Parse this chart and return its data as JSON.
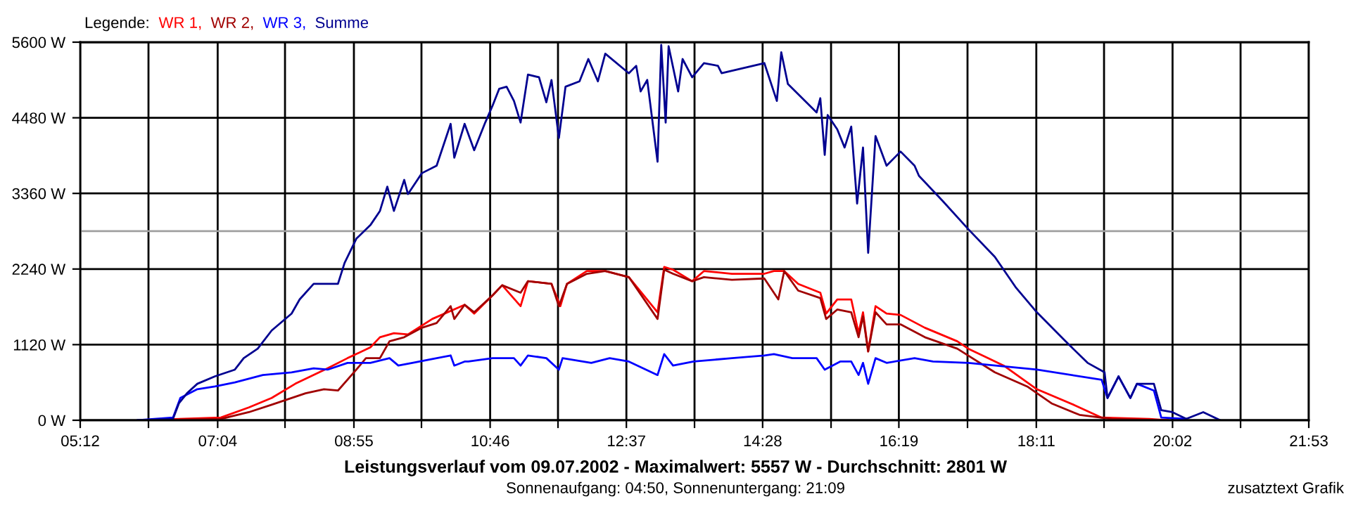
{
  "chart_data": {
    "type": "line",
    "title": "Leistungsverlauf vom 09.07.2002 - Maximalwert: 5557 W - Durchschnitt: 2801 W",
    "subtitle": "Sonnenaufgang: 04:50, Sonnenuntergang: 21:09",
    "legend_title": "Legende:",
    "annotations": [
      "zusatztext Grafik"
    ],
    "xlim": [
      5.2,
      21.8833
    ],
    "xticks": [
      {
        "value": 5.2,
        "label": "05:12"
      },
      {
        "value": 6.127,
        "label": null
      },
      {
        "value": 7.0667,
        "label": "07:04"
      },
      {
        "value": 7.981,
        "label": null
      },
      {
        "value": 8.9167,
        "label": "08:55"
      },
      {
        "value": 9.834,
        "label": null
      },
      {
        "value": 10.7667,
        "label": "10:46"
      },
      {
        "value": 11.688,
        "label": null
      },
      {
        "value": 12.6167,
        "label": "12:37"
      },
      {
        "value": 13.542,
        "label": null
      },
      {
        "value": 14.4667,
        "label": "14:28"
      },
      {
        "value": 15.396,
        "label": null
      },
      {
        "value": 16.3167,
        "label": "16:19"
      },
      {
        "value": 17.249,
        "label": null
      },
      {
        "value": 18.1833,
        "label": "18:11"
      },
      {
        "value": 19.103,
        "label": null
      },
      {
        "value": 20.0333,
        "label": "20:02"
      },
      {
        "value": 20.957,
        "label": null
      },
      {
        "value": 21.8833,
        "label": "21:53"
      }
    ],
    "ylim": [
      0,
      5600
    ],
    "yticks": [
      {
        "value": 0,
        "label": "0 W"
      },
      {
        "value": 1120,
        "label": "1120 W"
      },
      {
        "value": 2240,
        "label": "2240 W"
      },
      {
        "value": 3360,
        "label": "3360 W"
      },
      {
        "value": 4480,
        "label": "4480 W"
      },
      {
        "value": 5600,
        "label": "5600 W"
      }
    ],
    "grid": true,
    "legend": "top left",
    "marker": "none",
    "line_style": "solid",
    "ref_lines": [
      {
        "axis": "y",
        "value": 2801,
        "color": "#a0a0a0"
      }
    ],
    "series": [
      {
        "name": "WR 1,",
        "color": "#ff0000",
        "x": [
          6.02,
          7.11,
          7.49,
          7.8,
          8.12,
          8.56,
          8.83,
          9.14,
          9.27,
          9.46,
          9.65,
          9.98,
          10.42,
          10.55,
          10.8,
          10.93,
          11.18,
          11.28,
          11.6,
          11.72,
          11.81,
          12.08,
          12.33,
          12.65,
          13.04,
          13.13,
          13.25,
          13.51,
          13.67,
          14.05,
          14.49,
          14.62,
          14.76,
          14.95,
          15.25,
          15.33,
          15.48,
          15.67,
          15.77,
          15.83,
          15.9,
          16.0,
          16.15,
          16.34,
          16.67,
          17.11,
          17.26,
          17.74,
          18.19,
          18.69,
          19.07,
          19.72,
          19.97
        ],
        "values": [
          0,
          40,
          190,
          330,
          540,
          770,
          920,
          1080,
          1230,
          1290,
          1270,
          1500,
          1710,
          1580,
          1850,
          2000,
          1690,
          2060,
          2020,
          1690,
          2020,
          2210,
          2210,
          2120,
          1600,
          2270,
          2230,
          2060,
          2210,
          2170,
          2170,
          2210,
          2210,
          2020,
          1890,
          1580,
          1790,
          1790,
          1290,
          1600,
          1020,
          1690,
          1580,
          1560,
          1370,
          1170,
          1060,
          810,
          460,
          230,
          40,
          20,
          0
        ]
      },
      {
        "name": "WR 2,",
        "color": "#a00000",
        "x": [
          6.02,
          7.11,
          7.49,
          7.8,
          8.26,
          8.51,
          8.7,
          8.95,
          9.08,
          9.27,
          9.4,
          9.6,
          9.84,
          10.04,
          10.23,
          10.28,
          10.42,
          10.55,
          10.8,
          10.93,
          11.18,
          11.28,
          11.6,
          11.7,
          11.81,
          12.08,
          12.33,
          12.65,
          13.04,
          13.13,
          13.25,
          13.51,
          13.67,
          14.05,
          14.49,
          14.68,
          14.76,
          14.95,
          15.25,
          15.33,
          15.48,
          15.67,
          15.77,
          15.83,
          15.9,
          16.0,
          16.15,
          16.34,
          16.67,
          17.11,
          17.62,
          18.06,
          18.39,
          18.77,
          19.21,
          19.97
        ],
        "values": [
          0,
          20,
          120,
          230,
          400,
          460,
          440,
          750,
          920,
          920,
          1170,
          1230,
          1370,
          1440,
          1690,
          1500,
          1710,
          1600,
          1850,
          2000,
          1890,
          2060,
          2020,
          1690,
          2020,
          2170,
          2210,
          2120,
          1500,
          2230,
          2170,
          2060,
          2120,
          2080,
          2100,
          1790,
          2210,
          1920,
          1810,
          1500,
          1640,
          1600,
          1230,
          1540,
          1020,
          1600,
          1420,
          1420,
          1230,
          1060,
          710,
          500,
          250,
          80,
          20,
          0
        ]
      },
      {
        "name": "WR 3,",
        "color": "#0000ff",
        "x": [
          5.98,
          6.46,
          6.56,
          6.79,
          7.03,
          7.3,
          7.68,
          8.07,
          8.37,
          8.56,
          8.83,
          9.14,
          9.4,
          9.52,
          9.71,
          10.23,
          10.28,
          10.42,
          10.47,
          10.8,
          11.09,
          11.18,
          11.28,
          11.53,
          11.7,
          11.75,
          12.14,
          12.39,
          12.65,
          13.04,
          13.13,
          13.25,
          13.53,
          14.05,
          14.49,
          14.62,
          14.87,
          15.2,
          15.31,
          15.52,
          15.67,
          15.77,
          15.83,
          15.9,
          16.0,
          16.15,
          16.53,
          16.78,
          17.26,
          18.19,
          19.07,
          19.15,
          19.3,
          19.46,
          19.55,
          19.78,
          19.88,
          20.22
        ],
        "values": [
          0,
          40,
          330,
          460,
          500,
          560,
          670,
          710,
          770,
          750,
          850,
          850,
          920,
          810,
          850,
          960,
          810,
          870,
          870,
          920,
          920,
          810,
          960,
          920,
          750,
          920,
          850,
          920,
          870,
          670,
          980,
          810,
          870,
          920,
          960,
          980,
          920,
          920,
          750,
          870,
          870,
          670,
          850,
          540,
          920,
          850,
          920,
          870,
          850,
          750,
          600,
          330,
          650,
          330,
          540,
          440,
          40,
          20
        ]
      },
      {
        "name": "Summe",
        "color": "#000090",
        "x": [
          5.98,
          6.46,
          6.54,
          6.65,
          6.79,
          7.03,
          7.3,
          7.42,
          7.61,
          7.8,
          8.07,
          8.18,
          8.37,
          8.7,
          8.79,
          8.95,
          9.14,
          9.27,
          9.37,
          9.46,
          9.6,
          9.65,
          9.84,
          10.04,
          10.23,
          10.28,
          10.42,
          10.55,
          10.7,
          10.8,
          10.89,
          10.99,
          11.09,
          11.18,
          11.28,
          11.43,
          11.53,
          11.6,
          11.7,
          11.79,
          11.98,
          12.1,
          12.23,
          12.33,
          12.65,
          12.75,
          12.81,
          12.9,
          13.04,
          13.09,
          13.15,
          13.19,
          13.32,
          13.38,
          13.51,
          13.67,
          13.86,
          13.91,
          14.49,
          14.66,
          14.72,
          14.81,
          15.2,
          15.25,
          15.31,
          15.35,
          15.48,
          15.58,
          15.67,
          15.75,
          15.83,
          15.9,
          16.0,
          16.15,
          16.34,
          16.53,
          16.59,
          16.91,
          17.26,
          17.62,
          17.91,
          18.19,
          18.58,
          18.88,
          19.11,
          19.15,
          19.3,
          19.46,
          19.55,
          19.78,
          19.88,
          20.03,
          20.22,
          20.45,
          20.68
        ],
        "values": [
          0,
          20,
          250,
          400,
          540,
          650,
          750,
          920,
          1060,
          1330,
          1580,
          1790,
          2020,
          2020,
          2330,
          2690,
          2890,
          3100,
          3460,
          3100,
          3560,
          3350,
          3660,
          3770,
          4390,
          3890,
          4390,
          4000,
          4410,
          4660,
          4910,
          4940,
          4730,
          4410,
          5120,
          5080,
          4710,
          5040,
          4180,
          4940,
          5020,
          5350,
          5020,
          5430,
          5140,
          5250,
          4870,
          5040,
          3830,
          5560,
          4410,
          5540,
          4870,
          5350,
          5080,
          5290,
          5250,
          5140,
          5290,
          4730,
          5450,
          4980,
          4560,
          4770,
          3930,
          4520,
          4310,
          4040,
          4350,
          3210,
          4040,
          2480,
          4210,
          3770,
          3980,
          3770,
          3620,
          3250,
          2830,
          2420,
          1960,
          1600,
          1170,
          850,
          710,
          330,
          650,
          330,
          540,
          540,
          150,
          120,
          20,
          120,
          0
        ]
      }
    ]
  }
}
